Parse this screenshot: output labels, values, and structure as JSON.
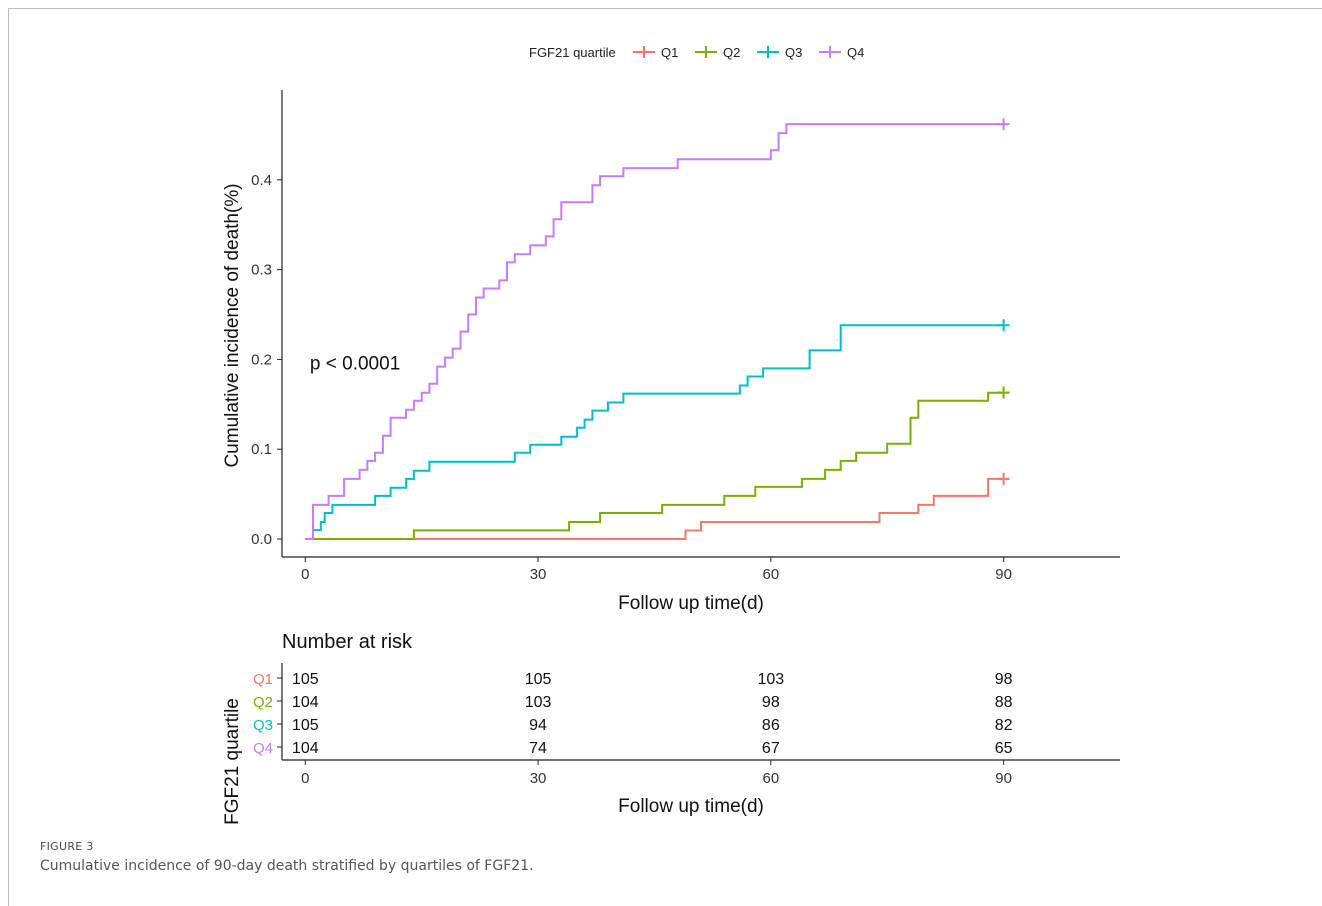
{
  "chart_data": {
    "type": "line",
    "subtype": "step-cumulative-incidence",
    "title": "",
    "xlabel": "Follow up time(d)",
    "ylabel": "Cumulative incidence of death(%)",
    "xlim": [
      -3,
      105
    ],
    "ylim": [
      -0.02,
      0.5
    ],
    "x_ticks": [
      0,
      30,
      60,
      90
    ],
    "x_tick_labels": [
      "0",
      "30",
      "60",
      "90"
    ],
    "y_ticks": [
      0.0,
      0.1,
      0.2,
      0.3,
      0.4
    ],
    "y_tick_labels": [
      "0.0",
      "0.1",
      "0.2",
      "0.3",
      "0.4"
    ],
    "grid": false,
    "legend": {
      "title": "FGF21 quartile",
      "position": "top",
      "entries": [
        "Q1",
        "Q2",
        "Q3",
        "Q4"
      ]
    },
    "annotation": "p < 0.0001",
    "series": [
      {
        "name": "Q1",
        "color": "#F8766D",
        "points": [
          [
            0,
            0
          ],
          [
            49,
            0.0095
          ],
          [
            51,
            0.019
          ],
          [
            74,
            0.029
          ],
          [
            79,
            0.038
          ],
          [
            81,
            0.048
          ],
          [
            88,
            0.067
          ],
          [
            90,
            0.067
          ]
        ],
        "censor_x": 90
      },
      {
        "name": "Q2",
        "color": "#7CAE00",
        "points": [
          [
            0,
            0
          ],
          [
            14,
            0.0096
          ],
          [
            34,
            0.019
          ],
          [
            38,
            0.029
          ],
          [
            46,
            0.038
          ],
          [
            54,
            0.048
          ],
          [
            58,
            0.058
          ],
          [
            64,
            0.067
          ],
          [
            67,
            0.077
          ],
          [
            69,
            0.087
          ],
          [
            71,
            0.096
          ],
          [
            75,
            0.106
          ],
          [
            78,
            0.135
          ],
          [
            79,
            0.154
          ],
          [
            88,
            0.163
          ],
          [
            90,
            0.163
          ]
        ],
        "censor_x": 90
      },
      {
        "name": "Q3",
        "color": "#00BFC4",
        "points": [
          [
            0,
            0
          ],
          [
            1,
            0.01
          ],
          [
            2,
            0.019
          ],
          [
            2.5,
            0.029
          ],
          [
            3.5,
            0.038
          ],
          [
            9,
            0.048
          ],
          [
            11,
            0.057
          ],
          [
            13,
            0.067
          ],
          [
            14,
            0.076
          ],
          [
            16,
            0.086
          ],
          [
            27,
            0.096
          ],
          [
            29,
            0.105
          ],
          [
            33,
            0.114
          ],
          [
            35,
            0.124
          ],
          [
            36,
            0.133
          ],
          [
            37,
            0.143
          ],
          [
            39,
            0.152
          ],
          [
            41,
            0.162
          ],
          [
            56,
            0.171
          ],
          [
            57,
            0.181
          ],
          [
            59,
            0.19
          ],
          [
            65,
            0.21
          ],
          [
            69,
            0.238
          ],
          [
            90,
            0.238
          ]
        ],
        "censor_x": 90
      },
      {
        "name": "Q4",
        "color": "#C77CFF",
        "points": [
          [
            0,
            0
          ],
          [
            1,
            0.038
          ],
          [
            3,
            0.048
          ],
          [
            5,
            0.067
          ],
          [
            7,
            0.077
          ],
          [
            8,
            0.087
          ],
          [
            9,
            0.096
          ],
          [
            10,
            0.115
          ],
          [
            11,
            0.135
          ],
          [
            13,
            0.144
          ],
          [
            14,
            0.154
          ],
          [
            15,
            0.163
          ],
          [
            16,
            0.173
          ],
          [
            17,
            0.192
          ],
          [
            18,
            0.202
          ],
          [
            19,
            0.212
          ],
          [
            20,
            0.231
          ],
          [
            21,
            0.25
          ],
          [
            22,
            0.269
          ],
          [
            23,
            0.279
          ],
          [
            25,
            0.288
          ],
          [
            26,
            0.308
          ],
          [
            27,
            0.317
          ],
          [
            29,
            0.327
          ],
          [
            31,
            0.337
          ],
          [
            32,
            0.356
          ],
          [
            33,
            0.375
          ],
          [
            37,
            0.394
          ],
          [
            38,
            0.404
          ],
          [
            41,
            0.413
          ],
          [
            48,
            0.423
          ],
          [
            60,
            0.433
          ],
          [
            61,
            0.452
          ],
          [
            62,
            0.462
          ],
          [
            90,
            0.462
          ]
        ],
        "censor_x": 90
      }
    ],
    "risk_table": {
      "title": "Number at risk",
      "ylabel": "FGF21 quartile",
      "xlabel": "Follow up time(d)",
      "times": [
        0,
        30,
        60,
        90
      ],
      "time_labels": [
        "0",
        "30",
        "60",
        "90"
      ],
      "rows": [
        {
          "group": "Q1",
          "color": "#F8766D",
          "counts": [
            "105",
            "105",
            "103",
            "98"
          ]
        },
        {
          "group": "Q2",
          "color": "#7CAE00",
          "counts": [
            "104",
            "103",
            "98",
            "88"
          ]
        },
        {
          "group": "Q3",
          "color": "#00BFC4",
          "counts": [
            "105",
            "94",
            "86",
            "82"
          ]
        },
        {
          "group": "Q4",
          "color": "#C77CFF",
          "counts": [
            "104",
            "74",
            "67",
            "65"
          ]
        }
      ]
    }
  },
  "caption": {
    "label": "FIGURE 3",
    "text": "Cumulative incidence of 90-day death stratified by quartiles of FGF21."
  }
}
